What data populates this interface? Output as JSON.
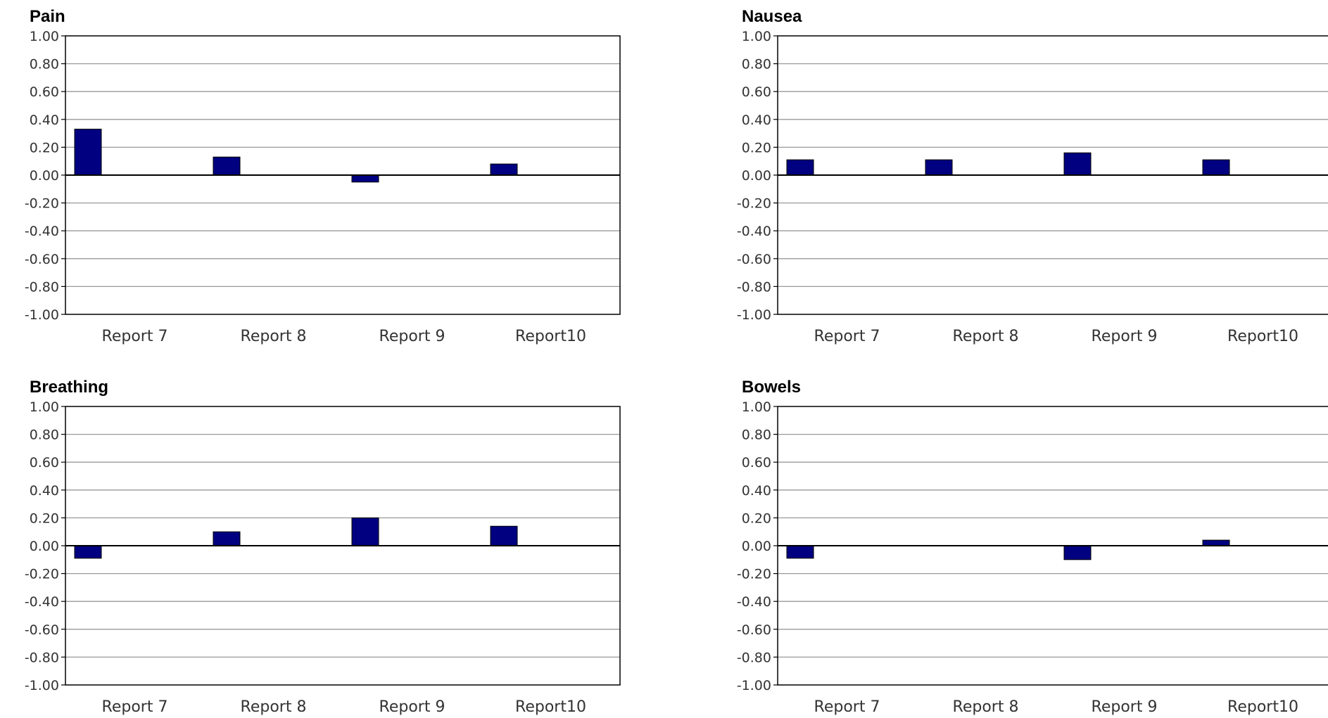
{
  "chart_data": [
    {
      "type": "bar",
      "title": "Pain",
      "categories": [
        "Report 7",
        "Report 8",
        "Report 9",
        "Report10"
      ],
      "values": [
        0.33,
        0.13,
        -0.05,
        0.08
      ],
      "ylim": [
        -1.0,
        1.0
      ],
      "yticks": [
        "1.00",
        "0.80",
        "0.60",
        "0.40",
        "0.20",
        "0.00",
        "-0.20",
        "-0.40",
        "-0.60",
        "-0.80",
        "-1.00"
      ],
      "grid": true,
      "legend": "none"
    },
    {
      "type": "bar",
      "title": "Nausea",
      "categories": [
        "Report 7",
        "Report 8",
        "Report 9",
        "Report10"
      ],
      "values": [
        0.11,
        0.11,
        0.16,
        0.11
      ],
      "ylim": [
        -1.0,
        1.0
      ],
      "yticks": [
        "1.00",
        "0.80",
        "0.60",
        "0.40",
        "0.20",
        "0.00",
        "-0.20",
        "-0.40",
        "-0.60",
        "-0.80",
        "-1.00"
      ],
      "grid": true,
      "legend": "none"
    },
    {
      "type": "bar",
      "title": "Breathing",
      "categories": [
        "Report 7",
        "Report 8",
        "Report 9",
        "Report10"
      ],
      "values": [
        -0.09,
        0.1,
        0.2,
        0.14
      ],
      "ylim": [
        -1.0,
        1.0
      ],
      "yticks": [
        "1.00",
        "0.80",
        "0.60",
        "0.40",
        "0.20",
        "0.00",
        "-0.20",
        "-0.40",
        "-0.60",
        "-0.80",
        "-1.00"
      ],
      "grid": true,
      "legend": "none"
    },
    {
      "type": "bar",
      "title": "Bowels",
      "categories": [
        "Report 7",
        "Report 8",
        "Report 9",
        "Report10"
      ],
      "values": [
        -0.09,
        0.0,
        -0.1,
        0.04
      ],
      "ylim": [
        -1.0,
        1.0
      ],
      "yticks": [
        "1.00",
        "0.80",
        "0.60",
        "0.40",
        "0.20",
        "0.00",
        "-0.20",
        "-0.40",
        "-0.60",
        "-0.80",
        "-1.00"
      ],
      "grid": true,
      "legend": "none"
    }
  ],
  "colors": {
    "bar_fill": "#000080",
    "bar_stroke": "#000000",
    "grid": "#999999",
    "frame": "#000000"
  }
}
